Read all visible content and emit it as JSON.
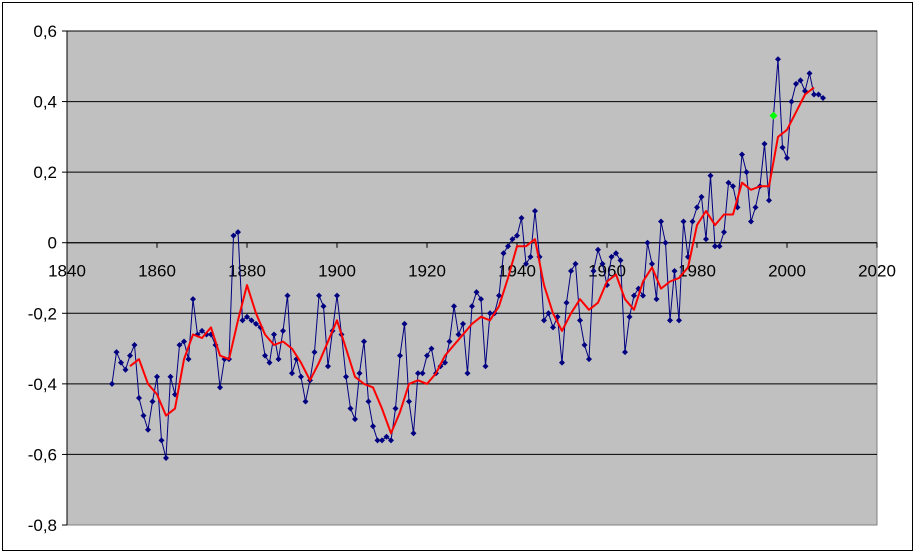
{
  "chart_data": {
    "type": "line",
    "title": "",
    "xlabel": "",
    "ylabel": "",
    "xlim": [
      1840,
      2020
    ],
    "ylim": [
      -0.8,
      0.6
    ],
    "x_ticks": [
      1840,
      1860,
      1880,
      1900,
      1920,
      1940,
      1960,
      1980,
      2000,
      2020
    ],
    "x_tick_labels": [
      "1840",
      "1860",
      "1880",
      "1900",
      "1920",
      "1940",
      "1960",
      "1980",
      "2000",
      "2020"
    ],
    "y_ticks": [
      0.6,
      0.4,
      0.2,
      0,
      -0.2,
      -0.4,
      -0.6,
      -0.8
    ],
    "y_tick_labels": [
      "0,6",
      "0,4",
      "0,2",
      "0",
      "-0,2",
      "-0,4",
      "-0,6",
      "-0,8"
    ],
    "grid": "horizontal",
    "legend": "none",
    "colors": {
      "plot_background": "#c0c0c0",
      "annual_series": "#000080",
      "smoothed_series": "#ff0000",
      "highlight_point": "#00ff00",
      "gridline": "#000000"
    },
    "series": [
      {
        "kind": "annual",
        "marker": "diamond",
        "x": [
          1850,
          1851,
          1852,
          1853,
          1854,
          1855,
          1856,
          1857,
          1858,
          1859,
          1860,
          1861,
          1862,
          1863,
          1864,
          1865,
          1866,
          1867,
          1868,
          1869,
          1870,
          1871,
          1872,
          1873,
          1874,
          1875,
          1876,
          1877,
          1878,
          1879,
          1880,
          1881,
          1882,
          1883,
          1884,
          1885,
          1886,
          1887,
          1888,
          1889,
          1890,
          1891,
          1892,
          1893,
          1894,
          1895,
          1896,
          1897,
          1898,
          1899,
          1900,
          1901,
          1902,
          1903,
          1904,
          1905,
          1906,
          1907,
          1908,
          1909,
          1910,
          1911,
          1912,
          1913,
          1914,
          1915,
          1916,
          1917,
          1918,
          1919,
          1920,
          1921,
          1922,
          1923,
          1924,
          1925,
          1926,
          1927,
          1928,
          1929,
          1930,
          1931,
          1932,
          1933,
          1934,
          1935,
          1936,
          1937,
          1938,
          1939,
          1940,
          1941,
          1942,
          1943,
          1944,
          1945,
          1946,
          1947,
          1948,
          1949,
          1950,
          1951,
          1952,
          1953,
          1954,
          1955,
          1956,
          1957,
          1958,
          1959,
          1960,
          1961,
          1962,
          1963,
          1964,
          1965,
          1966,
          1967,
          1968,
          1969,
          1970,
          1971,
          1972,
          1973,
          1974,
          1975,
          1976,
          1977,
          1978,
          1979,
          1980,
          1981,
          1982,
          1983,
          1984,
          1985,
          1986,
          1987,
          1988,
          1989,
          1990,
          1991,
          1992,
          1993,
          1994,
          1995,
          1996,
          1997,
          1998,
          1999,
          2000,
          2001,
          2002,
          2003,
          2004,
          2005,
          2006,
          2007,
          2008
        ],
        "y": [
          -0.4,
          -0.31,
          -0.34,
          -0.36,
          -0.32,
          -0.29,
          -0.44,
          -0.49,
          -0.53,
          -0.45,
          -0.38,
          -0.56,
          -0.61,
          -0.38,
          -0.43,
          -0.29,
          -0.28,
          -0.33,
          -0.16,
          -0.26,
          -0.25,
          -0.26,
          -0.26,
          -0.29,
          -0.41,
          -0.33,
          -0.33,
          0.02,
          0.03,
          -0.22,
          -0.21,
          -0.22,
          -0.23,
          -0.24,
          -0.32,
          -0.34,
          -0.26,
          -0.33,
          -0.25,
          -0.15,
          -0.37,
          -0.33,
          -0.38,
          -0.45,
          -0.39,
          -0.31,
          -0.15,
          -0.18,
          -0.35,
          -0.25,
          -0.15,
          -0.26,
          -0.38,
          -0.47,
          -0.5,
          -0.37,
          -0.28,
          -0.45,
          -0.52,
          -0.56,
          -0.56,
          -0.55,
          -0.56,
          -0.47,
          -0.32,
          -0.23,
          -0.45,
          -0.54,
          -0.37,
          -0.37,
          -0.32,
          -0.3,
          -0.37,
          -0.35,
          -0.34,
          -0.28,
          -0.18,
          -0.26,
          -0.23,
          -0.37,
          -0.18,
          -0.14,
          -0.16,
          -0.35,
          -0.2,
          -0.2,
          -0.15,
          -0.03,
          -0.01,
          0.01,
          0.02,
          0.07,
          -0.06,
          -0.04,
          0.09,
          -0.04,
          -0.22,
          -0.2,
          -0.24,
          -0.21,
          -0.34,
          -0.17,
          -0.08,
          -0.06,
          -0.22,
          -0.29,
          -0.33,
          -0.08,
          -0.02,
          -0.06,
          -0.12,
          -0.04,
          -0.03,
          -0.05,
          -0.31,
          -0.21,
          -0.15,
          -0.13,
          -0.15,
          0.0,
          -0.06,
          -0.16,
          0.06,
          0.0,
          -0.22,
          -0.08,
          -0.22,
          0.06,
          -0.04,
          0.06,
          0.1,
          0.13,
          0.01,
          0.19,
          -0.01,
          -0.01,
          0.03,
          0.17,
          0.16,
          0.1,
          0.25,
          0.2,
          0.06,
          0.1,
          0.16,
          0.28,
          0.12,
          0.36,
          0.52,
          0.27,
          0.24,
          0.4,
          0.45,
          0.46,
          0.43,
          0.48,
          0.42,
          0.42,
          0.41
        ]
      },
      {
        "kind": "smoothed",
        "x": [
          1854,
          1856,
          1858,
          1860,
          1862,
          1864,
          1866,
          1868,
          1870,
          1872,
          1874,
          1876,
          1878,
          1880,
          1882,
          1884,
          1886,
          1888,
          1890,
          1892,
          1894,
          1896,
          1898,
          1900,
          1902,
          1904,
          1906,
          1908,
          1910,
          1912,
          1914,
          1916,
          1918,
          1920,
          1922,
          1924,
          1926,
          1928,
          1930,
          1932,
          1934,
          1936,
          1938,
          1940,
          1942,
          1944,
          1946,
          1948,
          1950,
          1952,
          1954,
          1956,
          1958,
          1960,
          1962,
          1964,
          1966,
          1968,
          1970,
          1972,
          1974,
          1976,
          1978,
          1980,
          1982,
          1984,
          1986,
          1988,
          1990,
          1992,
          1994,
          1996,
          1998,
          2000,
          2002,
          2004,
          2006
        ],
        "y": [
          -0.35,
          -0.33,
          -0.4,
          -0.43,
          -0.49,
          -0.47,
          -0.33,
          -0.26,
          -0.27,
          -0.24,
          -0.32,
          -0.33,
          -0.22,
          -0.12,
          -0.2,
          -0.26,
          -0.29,
          -0.28,
          -0.3,
          -0.34,
          -0.39,
          -0.34,
          -0.28,
          -0.22,
          -0.3,
          -0.38,
          -0.4,
          -0.41,
          -0.47,
          -0.54,
          -0.48,
          -0.4,
          -0.39,
          -0.4,
          -0.37,
          -0.32,
          -0.29,
          -0.26,
          -0.23,
          -0.21,
          -0.22,
          -0.18,
          -0.1,
          -0.01,
          -0.01,
          0.01,
          -0.12,
          -0.2,
          -0.25,
          -0.2,
          -0.16,
          -0.19,
          -0.17,
          -0.11,
          -0.09,
          -0.16,
          -0.19,
          -0.11,
          -0.07,
          -0.13,
          -0.11,
          -0.1,
          -0.07,
          0.05,
          0.09,
          0.05,
          0.08,
          0.08,
          0.17,
          0.15,
          0.16,
          0.16,
          0.3,
          0.32,
          0.37,
          0.42,
          0.44
        ]
      }
    ],
    "highlight": {
      "x": 1997,
      "y": 0.36
    }
  }
}
